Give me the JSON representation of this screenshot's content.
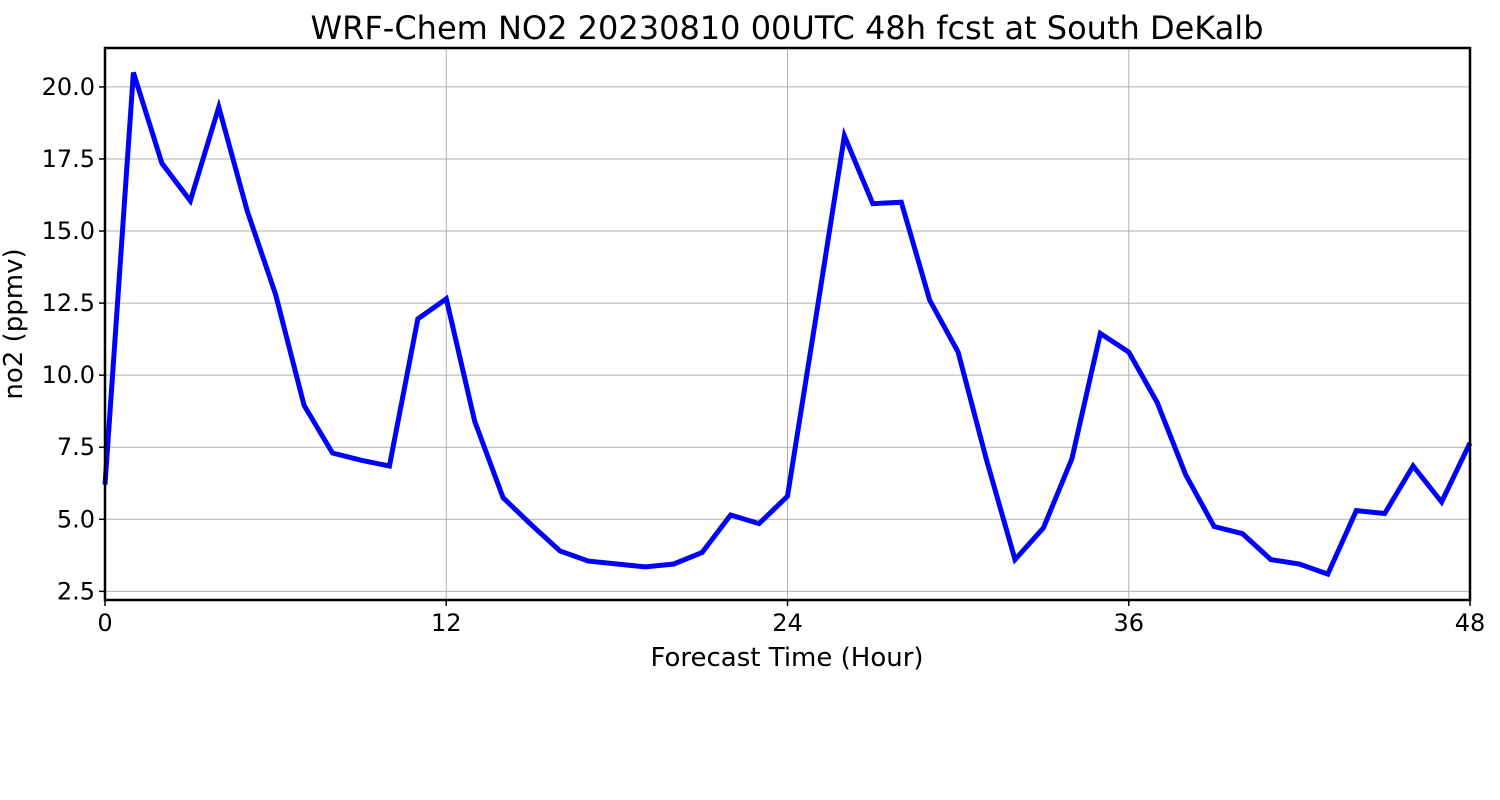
{
  "chart_data": {
    "type": "line",
    "title": "WRF-Chem NO2  20230810 00UTC 48h fcst at South DeKalb",
    "xlabel": "Forecast Time (Hour)",
    "ylabel": "no2  (ppmv)",
    "xlim": [
      0,
      48
    ],
    "ylim": [
      2.2,
      21.35
    ],
    "xticks": [
      0,
      12,
      24,
      36,
      48
    ],
    "yticks": [
      2.5,
      5.0,
      7.5,
      10.0,
      12.5,
      15.0,
      17.5,
      20.0
    ],
    "ytick_labels": [
      "2.5",
      "5.0",
      "7.5",
      "10.0",
      "12.5",
      "15.0",
      "17.5",
      "20.0"
    ],
    "grid": true,
    "series": [
      {
        "color": "#0000ff",
        "x": [
          0,
          1,
          2,
          3,
          4,
          5,
          6,
          7,
          8,
          9,
          10,
          11,
          12,
          13,
          14,
          15,
          16,
          17,
          18,
          19,
          20,
          21,
          22,
          23,
          24,
          25,
          26,
          27,
          28,
          29,
          30,
          31,
          32,
          33,
          34,
          35,
          36,
          37,
          38,
          39,
          40,
          41,
          42,
          43,
          44,
          45,
          46,
          47,
          48
        ],
        "y": [
          6.2,
          20.5,
          17.35,
          16.05,
          19.3,
          15.7,
          12.8,
          8.95,
          7.3,
          7.05,
          6.85,
          11.95,
          12.65,
          8.4,
          5.75,
          4.8,
          3.9,
          3.55,
          3.45,
          3.35,
          3.45,
          3.85,
          5.15,
          4.85,
          5.8,
          12.0,
          18.3,
          15.95,
          16.0,
          12.6,
          10.8,
          7.05,
          3.6,
          4.7,
          7.1,
          11.45,
          10.8,
          9.05,
          6.55,
          4.75,
          4.5,
          3.6,
          3.45,
          3.1,
          5.3,
          5.2,
          6.85,
          5.6,
          7.65
        ]
      }
    ]
  }
}
